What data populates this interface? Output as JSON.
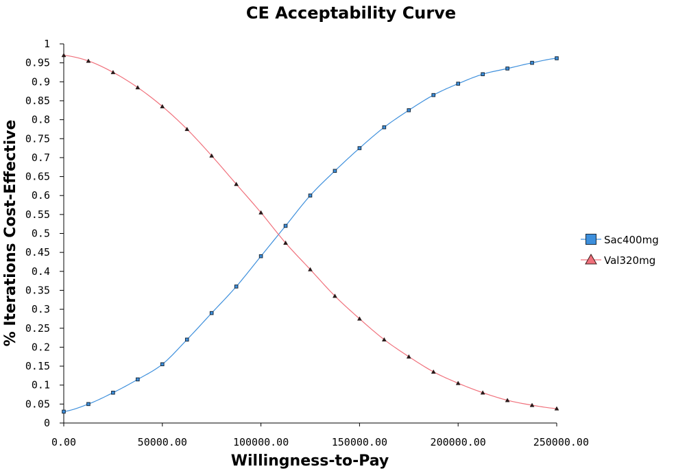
{
  "chart_data": {
    "type": "line",
    "title": "CE Acceptability Curve",
    "xlabel": "Willingness-to-Pay",
    "ylabel": "% Iterations Cost-Effective",
    "xlim": [
      0,
      250000
    ],
    "ylim": [
      0,
      1
    ],
    "x_ticks": [
      "0.00",
      "50000.00",
      "100000.00",
      "150000.00",
      "200000.00",
      "250000.00"
    ],
    "x_tick_values": [
      0,
      50000,
      100000,
      150000,
      200000,
      250000
    ],
    "y_ticks": [
      "0",
      "0.05",
      "0.1",
      "0.15",
      "0.2",
      "0.25",
      "0.3",
      "0.35",
      "0.4",
      "0.45",
      "0.5",
      "0.55",
      "0.6",
      "0.65",
      "0.7",
      "0.75",
      "0.8",
      "0.85",
      "0.9",
      "0.95",
      "1"
    ],
    "y_tick_values": [
      0,
      0.05,
      0.1,
      0.15,
      0.2,
      0.25,
      0.3,
      0.35,
      0.4,
      0.45,
      0.5,
      0.55,
      0.6,
      0.65,
      0.7,
      0.75,
      0.8,
      0.85,
      0.9,
      0.95,
      1
    ],
    "grid": false,
    "legend_position": "right",
    "x": [
      0,
      12500,
      25000,
      37500,
      50000,
      62500,
      75000,
      87500,
      100000,
      112500,
      125000,
      137500,
      150000,
      162500,
      175000,
      187500,
      200000,
      212500,
      225000,
      237500,
      250000
    ],
    "series": [
      {
        "name": "Sac400mg",
        "color": "#3d8fdc",
        "marker": "square",
        "values": [
          0.03,
          0.05,
          0.08,
          0.115,
          0.155,
          0.22,
          0.29,
          0.36,
          0.44,
          0.52,
          0.6,
          0.665,
          0.725,
          0.78,
          0.825,
          0.865,
          0.895,
          0.92,
          0.935,
          0.95,
          0.962
        ]
      },
      {
        "name": "Val320mg",
        "color": "#f0707b",
        "marker": "triangle",
        "values": [
          0.97,
          0.955,
          0.925,
          0.885,
          0.835,
          0.775,
          0.705,
          0.63,
          0.555,
          0.475,
          0.405,
          0.335,
          0.275,
          0.22,
          0.175,
          0.135,
          0.105,
          0.08,
          0.06,
          0.047,
          0.038
        ]
      }
    ]
  }
}
